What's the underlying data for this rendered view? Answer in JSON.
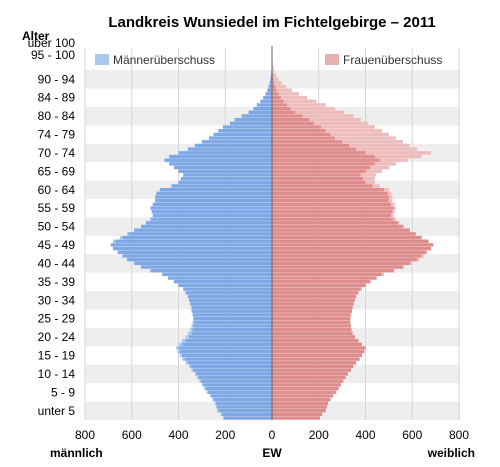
{
  "chart_data": {
    "type": "bar",
    "subtype": "population-pyramid",
    "title": "Landkreis Wunsiedel im Fichtelgebirge – 2011",
    "y_axis_title": "Alter",
    "age_tick_labels": [
      "über 100",
      "95 - 100",
      "90 - 94",
      "84 - 89",
      "80 - 84",
      "74 - 79",
      "70 - 74",
      "65 - 69",
      "60 - 64",
      "55 - 59",
      "50 - 54",
      "45 - 49",
      "40 - 44",
      "35 - 39",
      "30 - 34",
      "25 - 29",
      "20 - 24",
      "15 - 19",
      "10 - 14",
      "5 - 9",
      "unter 5"
    ],
    "x_ticks": [
      800,
      600,
      400,
      200,
      0,
      200,
      400,
      600,
      800
    ],
    "xlim": [
      -800,
      800
    ],
    "x_axis_label_left": "männlich",
    "x_axis_label_center": "EW",
    "x_axis_label_right": "weiblich",
    "legend": [
      {
        "label": "Männerüberschuss",
        "color": "#a8c8f0",
        "position": "top-left"
      },
      {
        "label": "Frauenüberschuss",
        "color": "#e8b0b0",
        "position": "top-right"
      }
    ],
    "colors": {
      "male": "#7ea7e6",
      "male_excess": "#a8c8f0",
      "female": "#de8c8c",
      "female_excess": "#eebcbc",
      "band": "#eeeeee"
    },
    "age_min": 0,
    "age_max": 100,
    "series": [
      {
        "name": "männlich",
        "description_ages": "age 0 to 100, one value per year of age",
        "values": [
          210,
          220,
          235,
          240,
          245,
          255,
          265,
          280,
          290,
          300,
          310,
          320,
          330,
          345,
          355,
          370,
          385,
          395,
          405,
          410,
          400,
          385,
          370,
          360,
          350,
          345,
          340,
          338,
          340,
          345,
          345,
          350,
          355,
          360,
          370,
          380,
          400,
          420,
          445,
          470,
          520,
          560,
          590,
          620,
          640,
          660,
          680,
          690,
          680,
          650,
          620,
          590,
          560,
          540,
          520,
          510,
          515,
          520,
          510,
          500,
          500,
          495,
          480,
          430,
          400,
          390,
          380,
          400,
          420,
          440,
          460,
          440,
          400,
          360,
          330,
          300,
          270,
          250,
          230,
          210,
          180,
          160,
          130,
          100,
          80,
          65,
          50,
          38,
          28,
          20,
          15,
          10,
          7,
          5,
          3,
          2,
          1,
          1,
          0,
          0,
          0
        ]
      },
      {
        "name": "weiblich",
        "description_ages": "age 0 to 100, one value per year of age",
        "values": [
          205,
          215,
          230,
          235,
          240,
          250,
          262,
          275,
          285,
          295,
          305,
          315,
          325,
          338,
          348,
          360,
          375,
          385,
          395,
          400,
          385,
          370,
          355,
          345,
          340,
          338,
          335,
          335,
          338,
          342,
          345,
          350,
          355,
          360,
          370,
          385,
          400,
          425,
          450,
          480,
          525,
          565,
          600,
          630,
          650,
          665,
          680,
          690,
          670,
          640,
          615,
          590,
          565,
          545,
          530,
          520,
          525,
          530,
          525,
          515,
          515,
          510,
          500,
          460,
          440,
          440,
          445,
          470,
          500,
          530,
          580,
          640,
          680,
          620,
          590,
          560,
          530,
          500,
          470,
          440,
          410,
          380,
          350,
          310,
          270,
          230,
          190,
          150,
          115,
          85,
          60,
          42,
          28,
          18,
          11,
          7,
          4,
          3,
          1,
          1,
          0
        ]
      }
    ]
  }
}
